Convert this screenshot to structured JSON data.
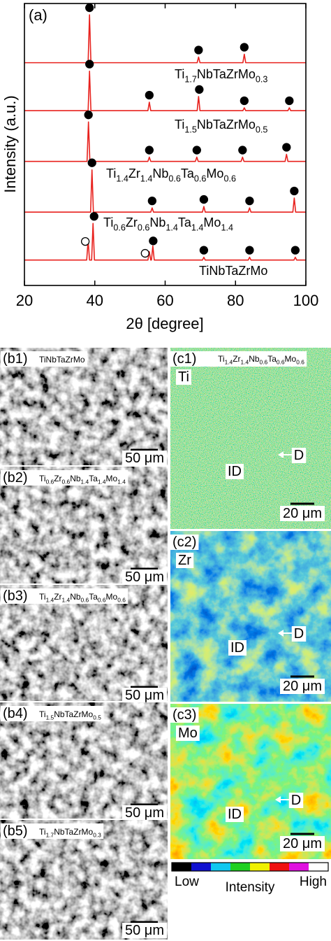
{
  "chart_data": {
    "type": "line",
    "panel_label": "(a)",
    "x_label": "2θ [degree]",
    "y_label": "Intensity (a.u.)",
    "xlim": [
      20,
      100
    ],
    "xticks": [
      20,
      40,
      60,
      80,
      100
    ],
    "ylim": [
      0,
      100
    ],
    "series": [
      {
        "label": [
          "Ti",
          "1.7",
          "NbTaZrMo",
          "0.3"
        ],
        "color": "#e8221e",
        "x": [
          20,
          38.1,
          38.5,
          38.9,
          69.1,
          69.5,
          69.9,
          82.1,
          82.5,
          82.9,
          100
        ],
        "values": [
          79,
          79,
          96,
          79,
          79,
          81,
          79,
          79,
          82,
          79,
          79
        ],
        "markers": [
          {
            "x": 38.5,
            "y": 98.5,
            "filled": true
          },
          {
            "x": 69.5,
            "y": 83.5,
            "filled": true
          },
          {
            "x": 82.5,
            "y": 84.5,
            "filled": true
          }
        ]
      },
      {
        "label": [
          "Ti",
          "1.5",
          "NbTaZrMo",
          "0.5"
        ],
        "color": "#e8221e",
        "x": [
          20,
          38.1,
          38.5,
          38.9,
          55.1,
          55.5,
          55.9,
          69.1,
          69.5,
          69.9,
          82.1,
          82.5,
          82.9,
          94.9,
          95.3,
          95.7,
          100
        ],
        "values": [
          62,
          62,
          76,
          62,
          62,
          65,
          62,
          62,
          67,
          62,
          62,
          63,
          62,
          62,
          63,
          62,
          62
        ],
        "markers": [
          {
            "x": 38.5,
            "y": 78.5,
            "filled": true
          },
          {
            "x": 55.5,
            "y": 67.5,
            "filled": true
          },
          {
            "x": 69.7,
            "y": 69.5,
            "filled": true
          },
          {
            "x": 82.5,
            "y": 65.5,
            "filled": true
          },
          {
            "x": 95.3,
            "y": 65.5,
            "filled": true
          }
        ]
      },
      {
        "label": [
          "Ti",
          "1.4",
          "Zr",
          "1.4",
          "Nb",
          "0.6",
          "Ta",
          "0.6",
          "Mo",
          "0.6"
        ],
        "color": "#e8221e",
        "x": [
          20,
          37.8,
          38.2,
          38.6,
          55.1,
          55.5,
          55.9,
          68.6,
          69,
          69.4,
          81.6,
          82,
          82.4,
          94.1,
          94.5,
          94.9,
          100
        ],
        "values": [
          44,
          44,
          58,
          44,
          44,
          45.5,
          44,
          44,
          45.5,
          44,
          44,
          45.5,
          44,
          44,
          46.5,
          44,
          44
        ],
        "markers": [
          {
            "x": 38.2,
            "y": 60.5,
            "filled": true
          },
          {
            "x": 55.5,
            "y": 48,
            "filled": true
          },
          {
            "x": 69,
            "y": 48,
            "filled": true
          },
          {
            "x": 82,
            "y": 48,
            "filled": true
          },
          {
            "x": 94.5,
            "y": 49,
            "filled": true
          }
        ]
      },
      {
        "label": [
          "Ti",
          "0.6",
          "Zr",
          "0.6",
          "Nb",
          "1.4",
          "Ta",
          "1.4",
          "Mo",
          "1.4"
        ],
        "color": "#e8221e",
        "x": [
          20,
          38.8,
          39.2,
          39.6,
          55.9,
          56.3,
          56.7,
          70.6,
          71,
          71.4,
          83.6,
          84,
          84.4,
          96.3,
          96.7,
          97.1,
          100
        ],
        "values": [
          26,
          26,
          41,
          26,
          26,
          27.5,
          26,
          26,
          28,
          26,
          26,
          27.5,
          26,
          26,
          31,
          26,
          26
        ],
        "markers": [
          {
            "x": 39.2,
            "y": 43.5,
            "filled": true
          },
          {
            "x": 56.3,
            "y": 30,
            "filled": true
          },
          {
            "x": 71,
            "y": 30.5,
            "filled": true
          },
          {
            "x": 84,
            "y": 30,
            "filled": true
          },
          {
            "x": 96.7,
            "y": 33.5,
            "filled": true
          }
        ]
      },
      {
        "label": [
          "TiNbTaZrMo"
        ],
        "color": "#e8221e",
        "x": [
          20,
          37.7,
          38.1,
          38.5,
          39.1,
          39.5,
          39.9,
          55.1,
          55.5,
          55.9,
          56.1,
          56.5,
          56.9,
          70.6,
          71,
          71.4,
          83.6,
          84,
          84.4,
          96.6,
          97,
          97.4,
          100
        ],
        "values": [
          9,
          9,
          16,
          9,
          9,
          22,
          9,
          9,
          12,
          9,
          9,
          14,
          9,
          9,
          10,
          9,
          9,
          10,
          9,
          9,
          10,
          9,
          9
        ],
        "markers": [
          {
            "x": 37.3,
            "y": 15.6,
            "filled": false
          },
          {
            "x": 39.8,
            "y": 24.5,
            "filled": true
          },
          {
            "x": 54.3,
            "y": 11.4,
            "filled": false
          },
          {
            "x": 56.6,
            "y": 15.8,
            "filled": true
          },
          {
            "x": 71,
            "y": 12.5,
            "filled": true
          },
          {
            "x": 84,
            "y": 12.5,
            "filled": true
          },
          {
            "x": 97,
            "y": 12.5,
            "filled": true
          }
        ]
      }
    ]
  },
  "micrographs": [
    {
      "label": "(b1)",
      "composition": [
        "TiNbTaZrMo"
      ],
      "scale_bar": "50 μm"
    },
    {
      "label": "(b2)",
      "composition": [
        "Ti",
        "0.6",
        "Zr",
        "0.6",
        "Nb",
        "1.4",
        "Ta",
        "1.4",
        "Mo",
        "1.4"
      ],
      "scale_bar": "50 μm"
    },
    {
      "label": "(b3)",
      "composition": [
        "Ti",
        "1.4",
        "Zr",
        "1.4",
        "Nb",
        "0.6",
        "Ta",
        "0.6",
        "Mo",
        "0.6"
      ],
      "scale_bar": "50 μm"
    },
    {
      "label": "(b4)",
      "composition": [
        "Ti",
        "1.5",
        "NbTaZrMo",
        "0.5"
      ],
      "scale_bar": "50 μm"
    },
    {
      "label": "(b5)",
      "composition": [
        "Ti",
        "1.7",
        "NbTaZrMo",
        "0.3"
      ],
      "scale_bar": "50 μm"
    }
  ],
  "maps": [
    {
      "label": "(c1)",
      "composition": [
        "Ti",
        "1.4",
        "Zr",
        "1.4",
        "Nb",
        "0.6",
        "Ta",
        "0.6",
        "Mo",
        "0.6"
      ],
      "element": "Ti",
      "regions": [
        "ID",
        "D"
      ],
      "scale_bar": "20 μm"
    },
    {
      "label": "(c2)",
      "element": "Zr",
      "regions": [
        "ID",
        "D"
      ],
      "scale_bar": "20 μm"
    },
    {
      "label": "(c3)",
      "element": "Mo",
      "regions": [
        "ID",
        "D"
      ],
      "scale_bar": "20 μm"
    }
  ],
  "colorbar": {
    "colors": [
      "#000000",
      "#1010d0",
      "#10c8f0",
      "#20d020",
      "#f0f000",
      "#f01010",
      "#e010e0",
      "#ffffff"
    ],
    "low": "Low",
    "title": "Intensity",
    "high": "High"
  }
}
